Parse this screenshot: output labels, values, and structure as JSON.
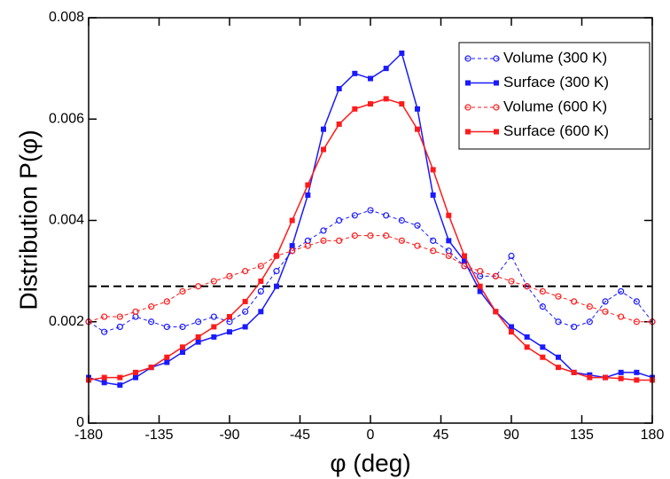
{
  "chart_data": {
    "type": "line",
    "x_label": "φ (deg)",
    "y_label": "Distribution P(φ)",
    "x": [
      -180,
      -170,
      -160,
      -150,
      -140,
      -130,
      -120,
      -110,
      -100,
      -90,
      -80,
      -70,
      -60,
      -50,
      -40,
      -30,
      -20,
      -10,
      0,
      10,
      20,
      30,
      40,
      50,
      60,
      70,
      80,
      90,
      100,
      110,
      120,
      130,
      140,
      150,
      160,
      170,
      180
    ],
    "xlim": [
      -180,
      180
    ],
    "xticks": [
      -180,
      -135,
      -90,
      -45,
      0,
      45,
      90,
      135,
      180
    ],
    "ylim": [
      0,
      0.008
    ],
    "yticks": [
      0,
      0.002,
      0.004,
      0.006,
      0.008
    ],
    "reference_line": 0.0027,
    "legend": "upper right",
    "series": [
      {
        "name": "Volume (300 K)",
        "color": "#1a1aff",
        "marker": "circle",
        "line_style": "dashed",
        "values": [
          0.002,
          0.0018,
          0.0019,
          0.0021,
          0.002,
          0.0019,
          0.0019,
          0.002,
          0.0021,
          0.002,
          0.0022,
          0.0026,
          0.003,
          0.0034,
          0.0036,
          0.0038,
          0.004,
          0.0041,
          0.0042,
          0.0041,
          0.004,
          0.0039,
          0.0036,
          0.0034,
          0.0031,
          0.0029,
          0.0029,
          0.0033,
          0.0027,
          0.0023,
          0.002,
          0.0019,
          0.002,
          0.0024,
          0.0026,
          0.0024,
          0.002
        ]
      },
      {
        "name": "Surface (300 K)",
        "color": "#1a1aff",
        "marker": "square",
        "line_style": "solid",
        "values": [
          0.0009,
          0.0008,
          0.00075,
          0.0009,
          0.0011,
          0.0012,
          0.0014,
          0.0016,
          0.0017,
          0.0018,
          0.0019,
          0.0022,
          0.0027,
          0.0035,
          0.0045,
          0.0058,
          0.0066,
          0.0069,
          0.0068,
          0.007,
          0.0073,
          0.0062,
          0.0045,
          0.0036,
          0.0032,
          0.0026,
          0.0022,
          0.0019,
          0.0017,
          0.0015,
          0.0013,
          0.001,
          0.00095,
          0.0009,
          0.001,
          0.001,
          0.0009
        ]
      },
      {
        "name": "Volume (600 K)",
        "color": "#ff1a1a",
        "marker": "circle",
        "line_style": "dashed",
        "values": [
          0.002,
          0.0021,
          0.0021,
          0.0022,
          0.0023,
          0.0024,
          0.0026,
          0.0027,
          0.0028,
          0.0029,
          0.003,
          0.0031,
          0.0033,
          0.0034,
          0.0035,
          0.0036,
          0.0036,
          0.0037,
          0.0037,
          0.0037,
          0.0036,
          0.0035,
          0.0034,
          0.0033,
          0.0031,
          0.003,
          0.0029,
          0.0028,
          0.0027,
          0.0026,
          0.0025,
          0.0024,
          0.0023,
          0.0022,
          0.0021,
          0.002,
          0.002
        ]
      },
      {
        "name": "Surface (600 K)",
        "color": "#ff1a1a",
        "marker": "square",
        "line_style": "solid",
        "values": [
          0.00085,
          0.0009,
          0.0009,
          0.001,
          0.0011,
          0.0013,
          0.0015,
          0.0017,
          0.0019,
          0.0021,
          0.0024,
          0.0028,
          0.0033,
          0.004,
          0.0047,
          0.0054,
          0.0059,
          0.0062,
          0.0063,
          0.0064,
          0.0063,
          0.0058,
          0.005,
          0.0041,
          0.0033,
          0.0027,
          0.0022,
          0.0018,
          0.0015,
          0.0013,
          0.0011,
          0.001,
          0.0009,
          0.0009,
          0.00088,
          0.00085,
          0.00085
        ]
      }
    ]
  }
}
